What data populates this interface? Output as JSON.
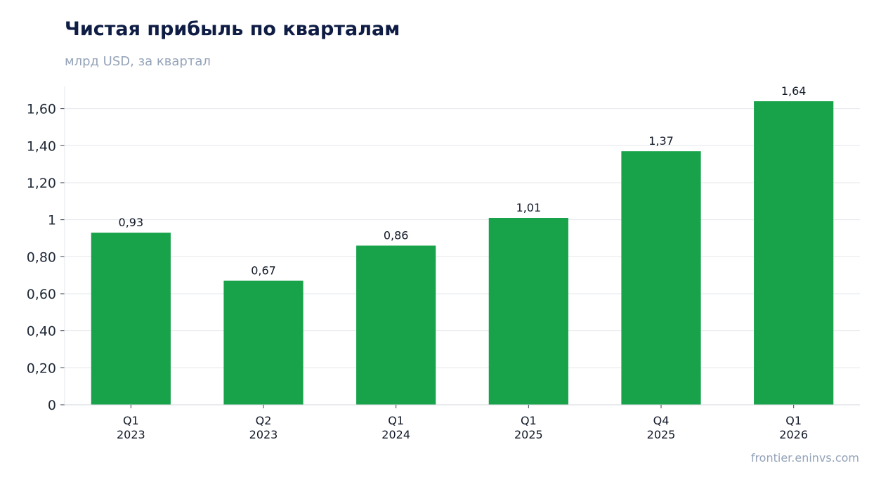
{
  "title": "Чистая прибыль по кварталам",
  "subtitle": "млрд USD, за квартал",
  "source": "frontier.eninvs.com",
  "chart_data": {
    "type": "bar",
    "categories": [
      [
        "Q1",
        "2023"
      ],
      [
        "Q2",
        "2023"
      ],
      [
        "Q1",
        "2024"
      ],
      [
        "Q1",
        "2025"
      ],
      [
        "Q4",
        "2025"
      ],
      [
        "Q1",
        "2026"
      ]
    ],
    "values": [
      0.93,
      0.67,
      0.86,
      1.01,
      1.37,
      1.64
    ],
    "value_labels": [
      "0,93",
      "0,67",
      "0,86",
      "1,01",
      "1,37",
      "1,64"
    ],
    "yticks": [
      0,
      0.2,
      0.4,
      0.6,
      0.8,
      1,
      1.2,
      1.4,
      1.6
    ],
    "ytick_labels": [
      "0",
      "0,20",
      "0,40",
      "0,60",
      "0,80",
      "1",
      "1,20",
      "1,40",
      "1,60"
    ],
    "ylim": [
      0,
      1.72
    ],
    "grid": true,
    "bar_color": "#18a34a",
    "grid_color": "#e5e7eb"
  }
}
